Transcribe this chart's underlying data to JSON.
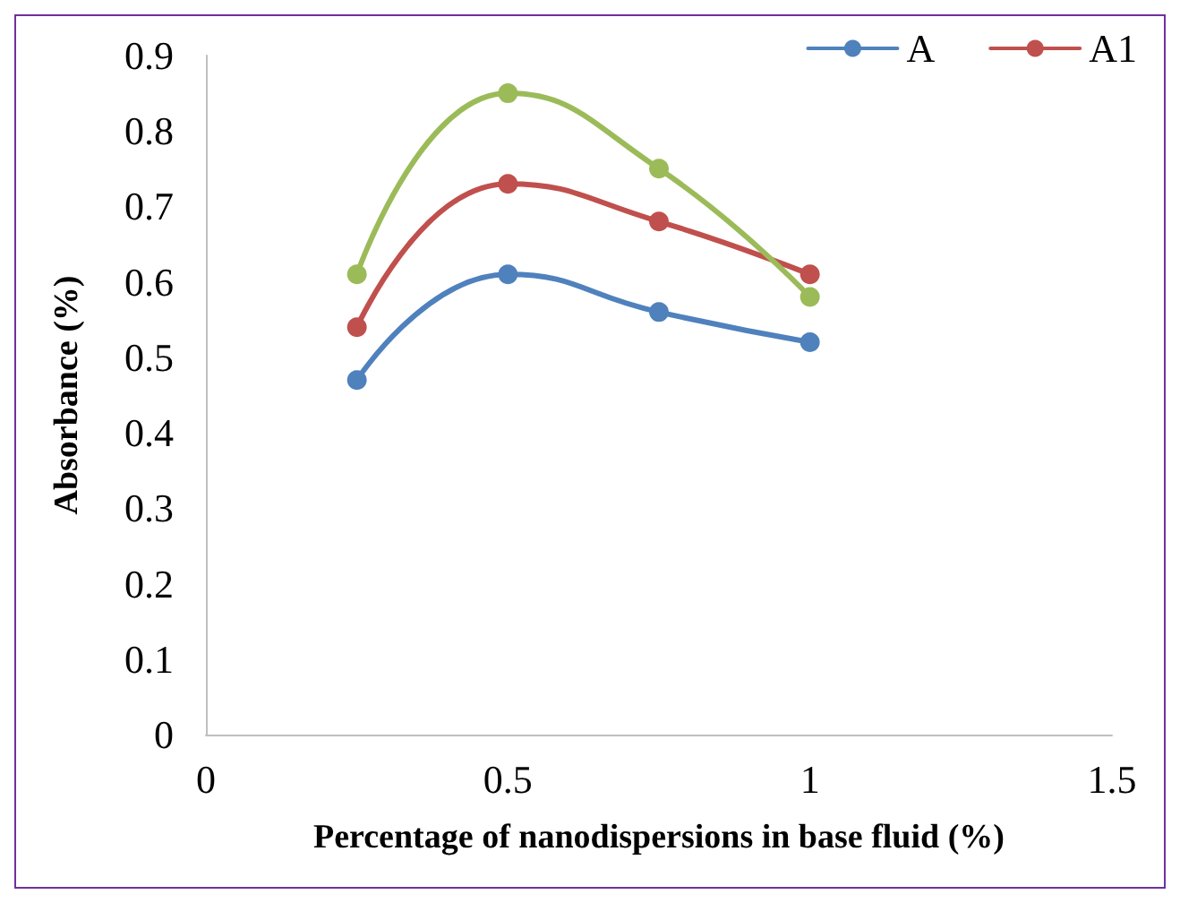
{
  "chart_data": {
    "type": "line",
    "xlabel": "Percentage of nanodispersions in base fluid (%)",
    "ylabel": "Absorbance (%)",
    "x": [
      0.25,
      0.5,
      0.75,
      1
    ],
    "series": [
      {
        "name": "A",
        "color": "#4f81bd",
        "values": [
          0.47,
          0.61,
          0.56,
          0.52
        ]
      },
      {
        "name": "A1",
        "color": "#c0504d",
        "values": [
          0.54,
          0.73,
          0.68,
          0.61
        ]
      },
      {
        "color": "#9bbb59",
        "values": [
          0.61,
          0.85,
          0.75,
          0.58
        ]
      }
    ],
    "xlim": [
      0,
      1.5
    ],
    "xticks": [
      0,
      0.5,
      1,
      1.5
    ],
    "ylim": [
      0,
      0.9
    ],
    "yticks": [
      0,
      0.1,
      0.2,
      0.3,
      0.4,
      0.5,
      0.6,
      0.7,
      0.8,
      0.9
    ],
    "grid": false,
    "legend": "top right",
    "marker": "circle",
    "line_style": "solid"
  }
}
